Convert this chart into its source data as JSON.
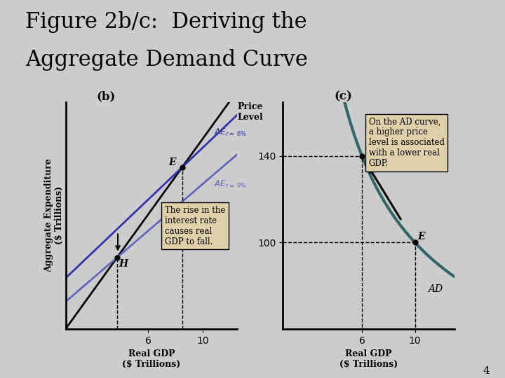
{
  "title_line1": "Figure 2b/c:  Deriving the",
  "title_line2": "Aggregate Demand Curve",
  "title_fontsize": 22,
  "bg_color": "#cccccc",
  "red_line_color": "#aa0000",
  "panel_b_label": "(b)",
  "panel_c_label": "(c)",
  "panel_b_xlabel": "Real GDP\n($ Trillions)",
  "panel_b_ylabel": "Aggregate Expenditure\n($ Trillions)",
  "panel_c_xlabel": "Real GDP\n($ Trillions)",
  "ae6_color": "#3333aa",
  "ae9_color": "#6666bb",
  "ae45_color": "#000000",
  "ad_color": "#336666",
  "box_color": "#ddd0aa",
  "box_text_b": "The rise in the\ninterest rate\ncauses real\nGDP to fall.",
  "box_text_c": "On the AD curve,\na higher price\nlevel is associated\nwith a lower real\nGDP.",
  "yticks_c": [
    100,
    140
  ],
  "xticks_b": [
    6,
    10
  ],
  "xticks_c": [
    6,
    10
  ],
  "footnote": "4",
  "ae6_slope": 0.72,
  "ae6_intercept": 2.8,
  "ae9_slope": 0.65,
  "ae9_intercept": 1.5,
  "line45_slope": 1.05
}
